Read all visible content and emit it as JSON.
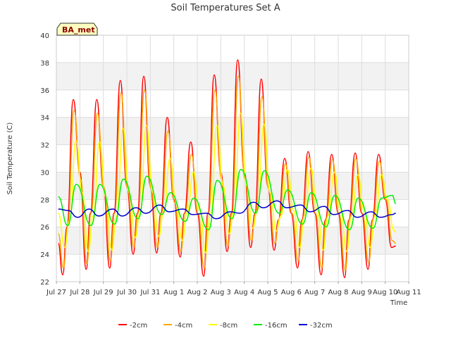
{
  "chart_data": {
    "type": "line",
    "title": "Soil Temperatures Set A",
    "xlabel": "Time",
    "ylabel": "Soil Temperature (C)",
    "site_label": "BA_met",
    "ylim": [
      22,
      40
    ],
    "xlim": [
      0,
      15
    ],
    "y_ticks": [
      22,
      24,
      26,
      28,
      30,
      32,
      34,
      36,
      38,
      40
    ],
    "x_ticks": [
      {
        "x": 0,
        "label": "Jul 27"
      },
      {
        "x": 1,
        "label": "Jul 28"
      },
      {
        "x": 2,
        "label": "Jul 29"
      },
      {
        "x": 3,
        "label": "Jul 30"
      },
      {
        "x": 4,
        "label": "Jul 31"
      },
      {
        "x": 5,
        "label": "Aug 1"
      },
      {
        "x": 6,
        "label": "Aug 2"
      },
      {
        "x": 7,
        "label": "Aug 3"
      },
      {
        "x": 8,
        "label": "Aug 4"
      },
      {
        "x": 9,
        "label": "Aug 5"
      },
      {
        "x": 10,
        "label": "Aug 6"
      },
      {
        "x": 11,
        "label": "Aug 7"
      },
      {
        "x": 12,
        "label": "Aug 8"
      },
      {
        "x": 13,
        "label": "Aug 9"
      },
      {
        "x": 14,
        "label": "Aug 10"
      },
      {
        "x": 15,
        "label": "Aug 11"
      }
    ],
    "grid": true,
    "legend_position": "bottom",
    "days": [
      "Jul 27",
      "Jul 28",
      "Jul 29",
      "Jul 30",
      "Jul 31",
      "Aug 1",
      "Aug 2",
      "Aug 3",
      "Aug 4",
      "Aug 5",
      "Aug 6",
      "Aug 7",
      "Aug 8",
      "Aug 9",
      "Aug 10"
    ],
    "series": [
      {
        "name": "-2cm",
        "color": "#ff0000",
        "x": [
          0.08,
          0.27,
          0.45,
          0.72,
          1.0,
          1.27,
          1.45,
          1.72,
          2.0,
          2.27,
          2.45,
          2.72,
          3.0,
          3.27,
          3.45,
          3.72,
          4.0,
          4.27,
          4.45,
          4.72,
          5.0,
          5.27,
          5.45,
          5.72,
          6.0,
          6.27,
          6.45,
          6.72,
          7.0,
          7.27,
          7.45,
          7.72,
          8.0,
          8.27,
          8.45,
          8.72,
          9.0,
          9.27,
          9.45,
          9.72,
          10.0,
          10.27,
          10.45,
          10.72,
          11.0,
          11.27,
          11.45,
          11.72,
          12.0,
          12.27,
          12.45,
          12.72,
          13.0,
          13.27,
          13.45,
          13.72,
          14.0,
          14.27,
          14.45
        ],
        "y": [
          24.8,
          22.5,
          26.0,
          35.3,
          30.0,
          22.9,
          27.0,
          35.3,
          29.0,
          23.0,
          27.0,
          36.7,
          29.0,
          24.0,
          27.0,
          37.0,
          29.0,
          24.1,
          27.0,
          34.0,
          28.0,
          23.8,
          27.0,
          32.2,
          27.0,
          22.4,
          27.0,
          37.1,
          30.0,
          24.2,
          27.0,
          38.2,
          30.0,
          24.5,
          27.0,
          36.8,
          29.0,
          24.3,
          26.5,
          31.0,
          27.0,
          23.0,
          26.5,
          31.5,
          27.0,
          22.5,
          26.5,
          31.3,
          27.0,
          22.3,
          26.5,
          31.4,
          27.0,
          22.9,
          26.5,
          31.3,
          28.0,
          24.5,
          24.6
        ]
      },
      {
        "name": "-4cm",
        "color": "#ffa500",
        "x": [
          0.08,
          0.3,
          0.48,
          0.75,
          1.03,
          1.3,
          1.48,
          1.75,
          2.03,
          2.3,
          2.48,
          2.75,
          3.03,
          3.3,
          3.48,
          3.75,
          4.03,
          4.3,
          4.48,
          4.75,
          5.03,
          5.3,
          5.48,
          5.75,
          6.03,
          6.3,
          6.48,
          6.75,
          7.03,
          7.3,
          7.48,
          7.75,
          8.03,
          8.3,
          8.48,
          8.75,
          9.03,
          9.3,
          9.48,
          9.75,
          10.03,
          10.3,
          10.48,
          10.75,
          11.03,
          11.3,
          11.48,
          11.75,
          12.03,
          12.3,
          12.48,
          12.75,
          13.03,
          13.3,
          13.48,
          13.75,
          14.03,
          14.3,
          14.45
        ],
        "y": [
          25.5,
          23.0,
          26.0,
          34.5,
          29.5,
          23.3,
          27.0,
          34.3,
          28.8,
          23.5,
          27.0,
          35.8,
          28.8,
          24.5,
          27.0,
          36.0,
          28.8,
          24.5,
          27.0,
          33.0,
          27.8,
          24.2,
          27.0,
          31.3,
          27.0,
          23.0,
          27.0,
          36.0,
          29.5,
          24.6,
          27.0,
          37.0,
          29.5,
          25.0,
          27.0,
          35.5,
          28.8,
          24.8,
          26.5,
          30.6,
          27.0,
          23.5,
          26.5,
          31.1,
          27.0,
          23.0,
          26.5,
          30.9,
          27.0,
          22.8,
          26.5,
          31.0,
          27.0,
          23.4,
          26.5,
          30.8,
          28.0,
          25.0,
          24.8
        ]
      },
      {
        "name": "-8cm",
        "color": "#ffff00",
        "x": [
          0.08,
          0.36,
          0.56,
          0.84,
          1.1,
          1.36,
          1.56,
          1.84,
          2.1,
          2.36,
          2.56,
          2.84,
          3.1,
          3.36,
          3.56,
          3.84,
          4.1,
          4.36,
          4.56,
          4.84,
          5.1,
          5.36,
          5.56,
          5.84,
          6.1,
          6.36,
          6.56,
          6.84,
          7.1,
          7.36,
          7.56,
          7.84,
          8.1,
          8.36,
          8.56,
          8.84,
          9.1,
          9.36,
          9.56,
          9.84,
          10.1,
          10.36,
          10.56,
          10.84,
          11.1,
          11.36,
          11.56,
          11.84,
          12.1,
          12.36,
          12.56,
          12.84,
          13.1,
          13.36,
          13.56,
          13.84,
          14.1,
          14.36,
          14.45
        ],
        "y": [
          27.0,
          24.5,
          26.5,
          32.3,
          28.5,
          24.2,
          26.8,
          32.2,
          28.2,
          24.3,
          26.8,
          33.2,
          28.5,
          25.2,
          27.0,
          33.4,
          28.5,
          25.3,
          27.0,
          31.0,
          27.8,
          25.0,
          27.0,
          30.0,
          27.2,
          24.1,
          27.0,
          33.4,
          29.0,
          25.5,
          27.2,
          34.3,
          29.0,
          25.9,
          27.2,
          33.5,
          28.5,
          25.7,
          26.8,
          30.2,
          27.2,
          24.5,
          26.8,
          30.3,
          27.2,
          24.3,
          26.8,
          30.0,
          27.2,
          24.2,
          26.8,
          29.8,
          27.2,
          24.5,
          26.8,
          29.8,
          28.0,
          25.8,
          25.6
        ]
      },
      {
        "name": "-16cm",
        "color": "#00ee00",
        "x": [
          0.08,
          0.48,
          0.85,
          1.48,
          1.85,
          2.48,
          2.85,
          3.48,
          3.85,
          4.48,
          4.85,
          5.48,
          5.85,
          6.48,
          6.85,
          7.48,
          7.85,
          8.48,
          8.85,
          9.48,
          9.85,
          10.48,
          10.85,
          11.48,
          11.85,
          12.48,
          12.85,
          13.48,
          13.85,
          14.3,
          14.45
        ],
        "y": [
          28.2,
          26.1,
          29.1,
          26.1,
          29.1,
          26.2,
          29.5,
          26.6,
          29.7,
          26.9,
          28.5,
          26.4,
          28.1,
          25.8,
          29.4,
          26.6,
          30.2,
          27.0,
          30.1,
          27.0,
          28.7,
          26.2,
          28.5,
          26.0,
          28.3,
          25.8,
          28.1,
          25.9,
          28.1,
          28.3,
          27.7
        ]
      },
      {
        "name": "-32cm",
        "color": "#0000cc",
        "x": [
          0.08,
          0.5,
          0.9,
          1.4,
          1.8,
          2.4,
          2.8,
          3.4,
          3.8,
          4.4,
          4.8,
          5.4,
          5.8,
          6.4,
          6.8,
          7.4,
          7.8,
          8.4,
          8.8,
          9.4,
          9.8,
          10.4,
          10.8,
          11.4,
          11.8,
          12.4,
          12.8,
          13.4,
          13.8,
          14.3,
          14.45
        ],
        "y": [
          27.3,
          27.2,
          26.7,
          27.3,
          26.8,
          27.3,
          26.8,
          27.4,
          27.0,
          27.6,
          27.1,
          27.3,
          26.9,
          27.0,
          26.6,
          27.1,
          27.0,
          27.8,
          27.4,
          27.9,
          27.4,
          27.6,
          27.1,
          27.5,
          26.9,
          27.2,
          26.7,
          27.1,
          26.7,
          26.9,
          27.0
        ]
      }
    ]
  }
}
